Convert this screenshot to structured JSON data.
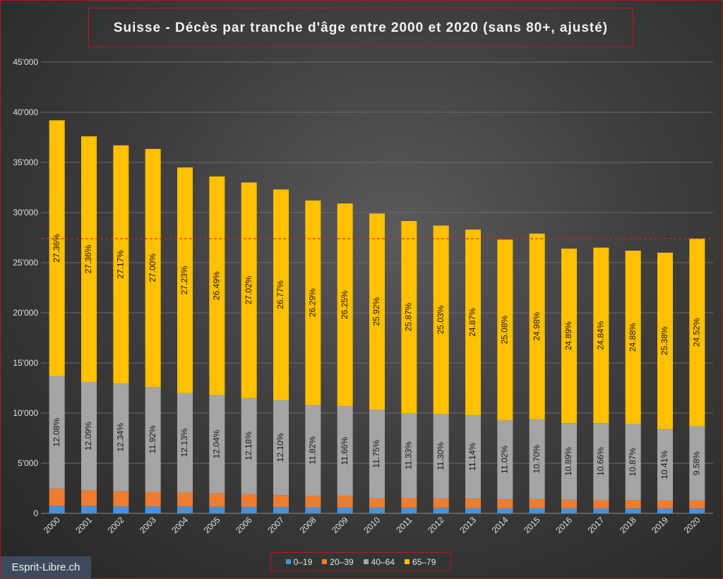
{
  "page": {
    "title": "Suisse - Décès par tranche d'âge entre 2000 et 2020 (sans 80+, ajusté)",
    "watermark": "Esprit-Libre.ch"
  },
  "colors": {
    "series_0_19": "#4a90d9",
    "series_20_39": "#ed7d31",
    "series_40_64": "#a5a5a5",
    "series_65_79": "#ffc000",
    "reference_line": "#e02020",
    "frame_border": "#c0151a"
  },
  "chart_data": {
    "type": "bar",
    "stacked": true,
    "title": "Suisse - Décès par tranche d'âge entre 2000 et 2020 (sans 80+, ajusté)",
    "xlabel": "",
    "ylabel": "",
    "ylim": [
      0,
      45000
    ],
    "yticks": [
      0,
      5000,
      10000,
      15000,
      20000,
      25000,
      30000,
      35000,
      40000,
      45000
    ],
    "ytick_labels": [
      "0",
      "5'000",
      "10'000",
      "15'000",
      "20'000",
      "25'000",
      "30'000",
      "35'000",
      "40'000",
      "45'000"
    ],
    "grid": true,
    "legend_position": "bottom",
    "reference_line": 27400,
    "categories": [
      "2000",
      "2001",
      "2002",
      "2003",
      "2004",
      "2005",
      "2006",
      "2007",
      "2008",
      "2009",
      "2010",
      "2011",
      "2012",
      "2013",
      "2014",
      "2015",
      "2016",
      "2017",
      "2018",
      "2019",
      "2020"
    ],
    "series": [
      {
        "name": "0–19",
        "values": [
          750,
          750,
          700,
          700,
          680,
          650,
          640,
          620,
          600,
          590,
          560,
          550,
          540,
          520,
          500,
          520,
          500,
          490,
          480,
          470,
          480
        ]
      },
      {
        "name": "20–39",
        "values": [
          1700,
          1550,
          1500,
          1450,
          1400,
          1350,
          1300,
          1200,
          1150,
          1150,
          950,
          1000,
          950,
          950,
          900,
          900,
          850,
          850,
          850,
          800,
          800
        ]
      },
      {
        "name": "40–64",
        "values": [
          11250,
          10800,
          10750,
          10450,
          9920,
          9800,
          9560,
          9480,
          9050,
          8960,
          8840,
          8450,
          8410,
          8330,
          7900,
          7980,
          7650,
          7660,
          7570,
          7130,
          7420
        ],
        "labels": [
          "12.08%",
          "12.09%",
          "12.34%",
          "11.92%",
          "12.13%",
          "12.04%",
          "12.18%",
          "12.10%",
          "11.82%",
          "11.66%",
          "11.75%",
          "11.33%",
          "11.30%",
          "11.14%",
          "11.02%",
          "10.70%",
          "10.89%",
          "10.66%",
          "10.87%",
          "10.41%",
          "9.58%"
        ]
      },
      {
        "name": "65–79",
        "values": [
          25500,
          24500,
          23750,
          23750,
          22500,
          21800,
          21500,
          21000,
          20400,
          20200,
          19550,
          19150,
          18800,
          18500,
          18000,
          18500,
          17400,
          17500,
          17300,
          17600,
          18700
        ],
        "labels": [
          "27.36%",
          "27.36%",
          "27.17%",
          "27.00%",
          "27.23%",
          "26.49%",
          "27.02%",
          "26.77%",
          "26.29%",
          "26.25%",
          "25.92%",
          "25.87%",
          "25.03%",
          "24.87%",
          "25.08%",
          "24.98%",
          "24.89%",
          "24.84%",
          "24.88%",
          "25.38%",
          "24.52%"
        ]
      }
    ]
  }
}
